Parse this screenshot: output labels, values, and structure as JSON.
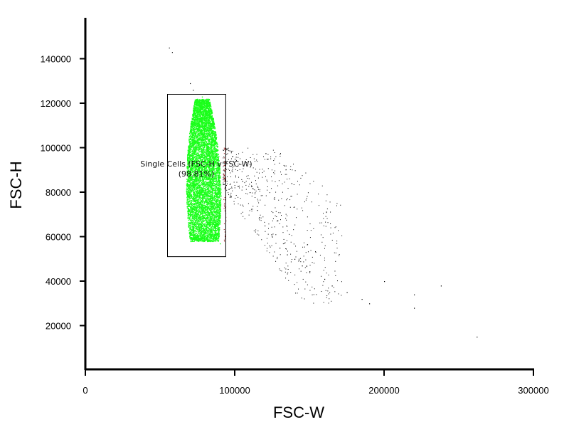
{
  "chart_data": {
    "type": "scatter",
    "xlabel": "FSC-W",
    "ylabel": "FSC-H",
    "xlim": [
      0,
      300000
    ],
    "ylim": [
      0,
      160000
    ],
    "x_ticks": [
      0,
      100000,
      200000,
      300000
    ],
    "y_ticks": [
      20000,
      40000,
      60000,
      80000,
      100000,
      120000,
      140000
    ],
    "gate": {
      "name": "Single Cells (FSC-H v FSC-W)",
      "percent": "(98.81%)",
      "x_range": [
        55000,
        94000
      ],
      "y_range": [
        51000,
        124000
      ]
    },
    "series": [
      {
        "color": "#1aff1a",
        "description_points": [
          [
            78000,
            123000
          ],
          [
            80000,
            118000
          ],
          [
            77000,
            110000
          ],
          [
            82000,
            105000
          ],
          [
            75000,
            100000
          ],
          [
            84000,
            95000
          ],
          [
            73000,
            90000
          ],
          [
            86000,
            85000
          ],
          [
            72000,
            80000
          ],
          [
            88000,
            75000
          ],
          [
            73000,
            70000
          ],
          [
            85000,
            65000
          ],
          [
            80000,
            60000
          ],
          [
            90000,
            57000
          ]
        ]
      },
      {
        "color": "#000000",
        "points": [
          [
            56000,
            145000
          ],
          [
            58000,
            143000
          ],
          [
            70000,
            129000
          ],
          [
            72000,
            126000
          ],
          [
            100000,
            95000
          ],
          [
            105000,
            85000
          ],
          [
            110000,
            80000
          ],
          [
            115000,
            72000
          ],
          [
            120000,
            65000
          ],
          [
            125000,
            60000
          ],
          [
            130000,
            55000
          ],
          [
            135000,
            52000
          ],
          [
            140000,
            50000
          ],
          [
            145000,
            47000
          ],
          [
            150000,
            44000
          ],
          [
            160000,
            41000
          ],
          [
            165000,
            38000
          ],
          [
            175000,
            35000
          ],
          [
            185000,
            32000
          ],
          [
            190000,
            30000
          ],
          [
            200000,
            40000
          ],
          [
            220000,
            34000
          ],
          [
            220000,
            28000
          ],
          [
            238000,
            38000
          ],
          [
            262000,
            15000
          ]
        ]
      }
    ]
  }
}
